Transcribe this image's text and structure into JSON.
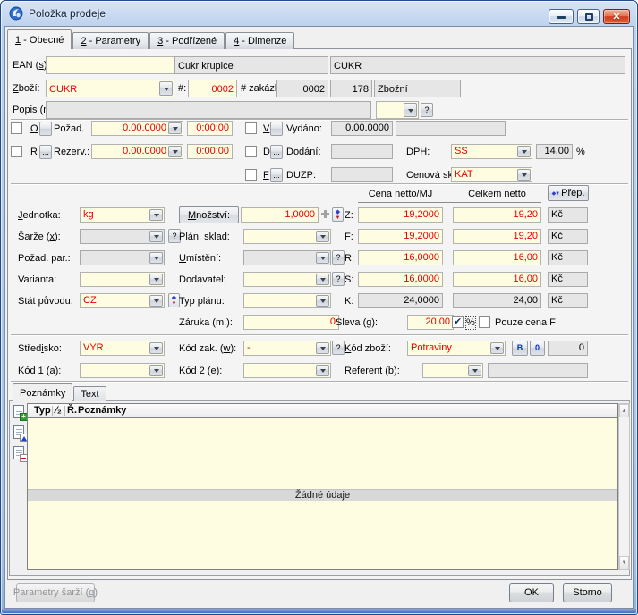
{
  "t": {
    "title": "Položka prodeje"
  },
  "tabs": [
    "_1_ - Obecné",
    "_2_ - Parametry",
    "_3_ - Podřízené",
    "_4_ - Dimenze"
  ],
  "colors": {
    "field_yellow": "#fffde1",
    "value_red": "#e60000"
  },
  "f": {
    "ean_l": "EAN (_s_):",
    "ean_v": "",
    "name_v": "Cukr krupice",
    "code_v": "CUKR",
    "zbozi_l": "_Z_boží:",
    "zbozi_v": "CUKR",
    "hash_l": "#:",
    "hash_v": "0002",
    "zak_l": "# zakázka:",
    "zak_v1": "0002",
    "zak_v2": "178",
    "zak_v3": "Zbožní",
    "popis_l": "Popis (_n_):",
    "popis_v": "",
    "dots": "...",
    "q": "?",
    "o": "_O_",
    "r": "_R_",
    "v": "_V_",
    "d": "_D_",
    "fx": "_F_",
    "pozad_l": "Požad.",
    "pozad_d": "0.00.0000",
    "pozad_t": "0:00:00",
    "rezerv_l": "Rezerv.:",
    "rezerv_d": "0.00.0000",
    "rezerv_t": "0:00:00",
    "vydano_l": "Vydáno:",
    "vydano_v": "0.00.0000",
    "dodani_l": "Dodání:",
    "duzp_l": "DUZP:",
    "dph_l": "DP_H_:",
    "dph_v": "SS",
    "dph_p": "14,00",
    "pct": "%",
    "cen_l": "Cenová sk.(_l_):",
    "cen_v": "KAT",
    "col1": "_C_ena netto/MJ",
    "col2": "Celkem netto",
    "prep": "Přep.",
    "kc": "Kč",
    "z_l": "Z:",
    "z1": "19,2000",
    "z2": "19,20",
    "f_l": "F:",
    "f1": "19,2000",
    "f2": "19,20",
    "r_l": "R:",
    "r1": "16,0000",
    "r2": "16,00",
    "s_l": "S:",
    "s1": "16,0000",
    "s2": "16,00",
    "k_l": "K:",
    "k1": "24,0000",
    "k2": "24,00",
    "jed_l": "_J_ednotka:",
    "jed_v": "kg",
    "mn_l": "_M_nožství:",
    "mn_v": "1,0000",
    "sar_l": "Šarže (_x_):",
    "plan_l": "Plán. sklad:",
    "poz_l": "Požad. par.:",
    "umi_l": "_U_místění:",
    "var_l": "Varianta:",
    "dod_l": "Dodavatel:",
    "stat_l": "Stát původu:",
    "stat_v": "CZ",
    "typ_l": "Typ plánu:",
    "zar_l": "Záruka (m.):",
    "zar_v": "0",
    "sleva_l": "Sleva (_g_):",
    "sleva_v": "20,00",
    "pouze_l": "Pouze cena F",
    "str_l": "Střed_i_sko:",
    "str_v": "VYR",
    "kzak_l": "Kód zak. (_w_):",
    "kzak_v": "-",
    "kzb_l": "_K_ód zboží:",
    "kzb_v": "Potraviny",
    "b": "B",
    "o0": "0",
    "kzb_n": "0",
    "k1_l": "Kód 1 (_a_):",
    "k2_l": "Kód 2 (_e_):",
    "ref_l": "Referent (_b_):"
  },
  "notes": {
    "tab1": "Poznámky",
    "tab2": "Text",
    "c1": "Typ",
    "c2": "⁄₂",
    "c3": "Ř.",
    "c4": "Poznámky",
    "empty": "Žádné údaje"
  },
  "footer": {
    "params": "Parametry šarží (_q_)",
    "ok": "OK",
    "storno": "Storno"
  }
}
